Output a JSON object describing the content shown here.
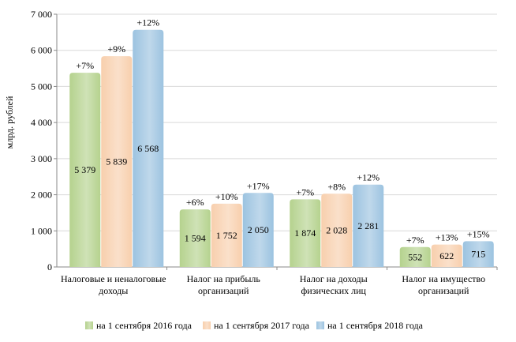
{
  "chart_data": {
    "type": "bar",
    "ylabel": "млрд. рублей",
    "ylim": [
      0,
      7000
    ],
    "yticks": [
      0,
      1000,
      2000,
      3000,
      4000,
      5000,
      6000,
      7000
    ],
    "ytick_labels": [
      "0",
      "1 000",
      "2 000",
      "3 000",
      "4 000",
      "5 000",
      "6 000",
      "7 000"
    ],
    "grid": true,
    "legend_position": "bottom",
    "categories": [
      [
        "Налоговые и неналоговые",
        "доходы"
      ],
      [
        "Налог на прибыль",
        "организаций"
      ],
      [
        "Налог на доходы",
        "физических лиц"
      ],
      [
        "Налог на имущество",
        "организаций"
      ]
    ],
    "series": [
      {
        "name": "на 1 сентября 2016 года",
        "color": "#b5d28e",
        "values": [
          5379,
          1594,
          1874,
          552
        ],
        "value_labels": [
          "5 379",
          "1 594",
          "1 874",
          "552"
        ],
        "growth_labels": [
          "+7%",
          "+6%",
          "+7%",
          "+7%"
        ]
      },
      {
        "name": "на 1 сентября 2017 года",
        "color": "#f8cfad",
        "values": [
          5839,
          1752,
          2028,
          622
        ],
        "value_labels": [
          "5 839",
          "1 752",
          "2 028",
          "622"
        ],
        "growth_labels": [
          "+9%",
          "+10%",
          "+8%",
          "+13%"
        ]
      },
      {
        "name": "на 1 сентября 2018 года",
        "color": "#9cc3e0",
        "values": [
          6568,
          2050,
          2281,
          715
        ],
        "value_labels": [
          "6 568",
          "2 050",
          "2 281",
          "715"
        ],
        "growth_labels": [
          "+12%",
          "+17%",
          "+12%",
          "+15%"
        ]
      }
    ]
  }
}
